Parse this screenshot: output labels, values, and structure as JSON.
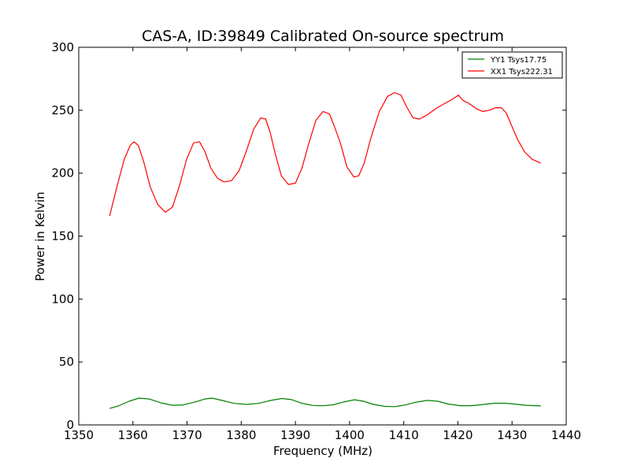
{
  "chart_data": {
    "type": "line",
    "title": "CAS-A, ID:39849 Calibrated On-source spectrum",
    "xlabel": "Frequency (MHz)",
    "ylabel": "Power in Kelvin",
    "xlim": [
      1350,
      1440
    ],
    "ylim": [
      0,
      300
    ],
    "xticks": [
      1350,
      1360,
      1370,
      1380,
      1390,
      1400,
      1410,
      1420,
      1430,
      1440
    ],
    "yticks": [
      0,
      50,
      100,
      150,
      200,
      250,
      300
    ],
    "grid": false,
    "legend_position": "top-right",
    "series": [
      {
        "name": "YY1 Tsys17.75",
        "color": "#008000",
        "x": [
          1355.7,
          1357.3,
          1359.3,
          1361.1,
          1363.0,
          1365.2,
          1367.3,
          1369.3,
          1371.4,
          1373.3,
          1374.6,
          1376.5,
          1378.7,
          1381.0,
          1383.2,
          1385.4,
          1387.5,
          1389.3,
          1391.1,
          1393.2,
          1395.0,
          1397.0,
          1399.1,
          1400.9,
          1402.6,
          1404.4,
          1406.5,
          1408.4,
          1410.2,
          1412.3,
          1414.4,
          1416.3,
          1418.2,
          1420.4,
          1422.5,
          1424.8,
          1426.8,
          1428.4,
          1430.4,
          1432.6,
          1435.3
        ],
        "y": [
          13.1,
          15.0,
          18.8,
          21.3,
          20.6,
          17.5,
          15.6,
          15.9,
          18.1,
          20.6,
          21.3,
          19.4,
          17.1,
          16.3,
          17.1,
          19.4,
          21.0,
          20.1,
          17.3,
          15.5,
          15.2,
          16.0,
          18.4,
          20.0,
          18.8,
          16.3,
          14.7,
          14.5,
          15.8,
          18.1,
          19.5,
          18.8,
          16.6,
          15.3,
          15.3,
          16.3,
          17.2,
          17.3,
          16.6,
          15.6,
          15.1
        ]
      },
      {
        "name": "XX1 Tsys222.31",
        "color": "#ff0000",
        "x": [
          1355.7,
          1357.1,
          1358.4,
          1359.5,
          1360.2,
          1361.0,
          1362.0,
          1363.2,
          1364.6,
          1366.0,
          1367.3,
          1368.6,
          1369.9,
          1371.2,
          1372.3,
          1373.3,
          1374.4,
          1375.6,
          1376.8,
          1378.2,
          1379.6,
          1380.9,
          1382.3,
          1383.6,
          1384.5,
          1385.3,
          1386.3,
          1387.4,
          1388.7,
          1390.0,
          1391.2,
          1392.5,
          1393.8,
          1395.1,
          1396.3,
          1397.3,
          1398.3,
          1399.5,
          1400.8,
          1401.7,
          1402.7,
          1404.0,
          1405.5,
          1407.0,
          1408.3,
          1409.5,
          1410.5,
          1411.7,
          1412.9,
          1414.2,
          1415.2,
          1416.2,
          1417.4,
          1418.7,
          1420.1,
          1420.9,
          1421.3,
          1421.8,
          1422.5,
          1423.5,
          1424.6,
          1425.8,
          1427.0,
          1428.0,
          1428.9,
          1429.9,
          1431.0,
          1432.3,
          1433.7,
          1435.3
        ],
        "y": [
          166,
          190,
          211,
          222,
          225,
          222,
          209,
          189,
          175,
          169,
          173,
          190,
          211,
          224,
          225,
          217,
          204,
          196,
          193,
          194,
          202,
          217,
          235,
          244,
          243,
          233,
          215,
          198,
          191,
          192,
          204,
          224,
          242,
          249,
          247,
          236,
          224,
          205,
          197,
          198,
          208,
          229,
          249,
          261,
          264,
          262,
          253,
          244,
          243,
          246,
          249,
          252,
          255,
          258,
          262,
          258,
          257,
          256,
          254,
          251,
          249,
          250,
          252,
          252,
          248,
          238,
          227,
          217,
          211,
          208
        ]
      }
    ]
  }
}
